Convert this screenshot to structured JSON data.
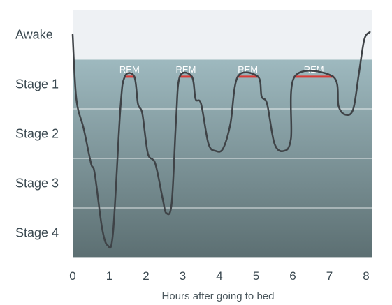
{
  "chart_data": {
    "type": "line",
    "title": "",
    "xlabel": "Hours after going to bed",
    "ylabel": "",
    "xlim": [
      0,
      8
    ],
    "x_ticks": [
      "0",
      "1",
      "2",
      "3",
      "4",
      "5",
      "6",
      "7",
      "8"
    ],
    "stages": [
      "Awake",
      "Stage 1",
      "Stage 2",
      "Stage 3",
      "Stage 4"
    ],
    "rem_label": "REM",
    "rem_periods": [
      {
        "label": "REM",
        "start": 1.42,
        "end": 1.68
      },
      {
        "label": "REM",
        "start": 2.92,
        "end": 3.25
      },
      {
        "label": "REM",
        "start": 4.5,
        "end": 5.05
      },
      {
        "label": "REM",
        "start": 6.05,
        "end": 7.1
      }
    ],
    "series": [
      {
        "values": [
          [
            0.0,
            0.5
          ],
          [
            0.1,
            1.8
          ],
          [
            0.3,
            2.4
          ],
          [
            0.5,
            3.1
          ],
          [
            0.6,
            3.3
          ],
          [
            0.8,
            4.4
          ],
          [
            0.95,
            4.75
          ],
          [
            1.1,
            4.5
          ],
          [
            1.3,
            2.0
          ],
          [
            1.42,
            1.35
          ],
          [
            1.68,
            1.35
          ],
          [
            1.78,
            1.9
          ],
          [
            1.9,
            2.1
          ],
          [
            2.05,
            2.9
          ],
          [
            2.25,
            3.1
          ],
          [
            2.45,
            3.8
          ],
          [
            2.55,
            4.1
          ],
          [
            2.7,
            3.9
          ],
          [
            2.82,
            2.2
          ],
          [
            2.92,
            1.35
          ],
          [
            3.25,
            1.35
          ],
          [
            3.35,
            1.8
          ],
          [
            3.5,
            1.9
          ],
          [
            3.7,
            2.7
          ],
          [
            3.9,
            2.85
          ],
          [
            4.1,
            2.8
          ],
          [
            4.3,
            2.3
          ],
          [
            4.5,
            1.35
          ],
          [
            5.05,
            1.35
          ],
          [
            5.15,
            1.75
          ],
          [
            5.3,
            1.9
          ],
          [
            5.5,
            2.7
          ],
          [
            5.75,
            2.85
          ],
          [
            5.95,
            2.6
          ],
          [
            6.05,
            1.35
          ],
          [
            7.1,
            1.35
          ],
          [
            7.25,
            1.95
          ],
          [
            7.45,
            2.12
          ],
          [
            7.65,
            2.0
          ],
          [
            7.8,
            1.3
          ],
          [
            7.95,
            0.6
          ],
          [
            8.1,
            0.45
          ]
        ]
      }
    ],
    "colors": {
      "awake_band": "#eef1f4",
      "band_top": "#9eb9bf",
      "band_bottom": "#5c6f72",
      "line": "#3f4347",
      "rem": "#d93b36",
      "grid": "#ffffff",
      "text": "#3a4850"
    },
    "grid": true
  }
}
